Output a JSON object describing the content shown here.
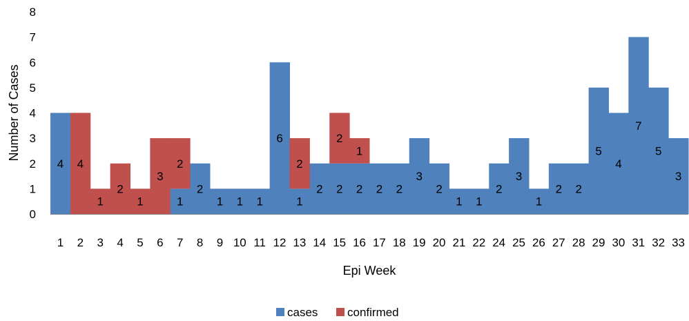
{
  "chart_data": {
    "type": "bar",
    "stacked": true,
    "categories": [
      "1",
      "2",
      "3",
      "4",
      "5",
      "6",
      "7",
      "8",
      "9",
      "10",
      "11",
      "12",
      "13",
      "14",
      "15",
      "16",
      "17",
      "18",
      "19",
      "20",
      "21",
      "22",
      "24",
      "25",
      "26",
      "27",
      "28",
      "29",
      "30",
      "31",
      "32",
      "33"
    ],
    "series": [
      {
        "name": "cases",
        "color": "#4f81bd",
        "values": [
          4,
          0,
          0,
          0,
          0,
          0,
          1,
          2,
          1,
          1,
          1,
          6,
          1,
          2,
          2,
          2,
          2,
          2,
          3,
          2,
          1,
          1,
          2,
          3,
          1,
          2,
          2,
          5,
          4,
          7,
          5,
          3
        ]
      },
      {
        "name": "confirmed",
        "color": "#c0504d",
        "values": [
          0,
          4,
          1,
          2,
          1,
          3,
          2,
          0,
          0,
          0,
          0,
          0,
          2,
          0,
          2,
          1,
          0,
          0,
          0,
          0,
          0,
          0,
          0,
          0,
          0,
          0,
          0,
          0,
          0,
          0,
          0,
          0
        ]
      }
    ],
    "xlabel": "Epi Week",
    "ylabel": "Number of Cases",
    "ylim": [
      0,
      8
    ],
    "yticks": [
      0,
      1,
      2,
      3,
      4,
      5,
      6,
      7,
      8
    ],
    "grid": false,
    "legend_position": "bottom",
    "bar_gap": 0
  }
}
